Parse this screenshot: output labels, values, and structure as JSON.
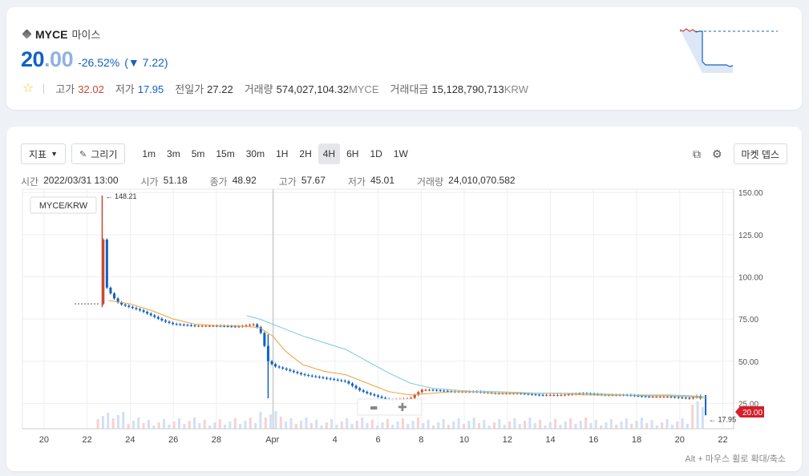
{
  "ticker": {
    "symbol": "MYCE",
    "name_kr": "마이스",
    "price_int": "20",
    "price_dec": ".00",
    "change_pct": "-26.52%",
    "change_arrow": "▼",
    "change_abs": "7.22",
    "stats": {
      "high_label": "고가",
      "high": "32.02",
      "low_label": "저가",
      "low": "17.95",
      "prev_label": "전일가",
      "prev": "27.22",
      "volume_label": "거래량",
      "volume": "574,027,104.32",
      "volume_unit": "MYCE",
      "value_label": "거래대금",
      "value": "15,128,790,713",
      "value_unit": "KRW"
    }
  },
  "toolbar": {
    "indicator_label": "지표",
    "draw_label": "그리기",
    "intervals": [
      "1m",
      "3m",
      "5m",
      "15m",
      "30m",
      "1H",
      "2H",
      "4H",
      "6H",
      "1D",
      "1W"
    ],
    "active_interval": "4H",
    "depth_label": "마켓 뎁스"
  },
  "ohlc": {
    "time_label": "시간",
    "time": "2022/03/31 13:00",
    "open_label": "시가",
    "open": "51.18",
    "close_label": "종가",
    "close": "48.92",
    "high_label": "고가",
    "high": "57.67",
    "low_label": "저가",
    "low": "45.01",
    "vol_label": "거래량",
    "vol": "24,010,070.582"
  },
  "legend_pair": "MYCE/KRW",
  "hint": "Alt + 마우스 휠로 확대/축소",
  "colors": {
    "up": "#c84a31",
    "down": "#1261c4",
    "ma_short": "#e8a33d",
    "ma_long": "#7ecbd6",
    "price_tag": "#d61f2a"
  },
  "chart_data": {
    "type": "candlestick",
    "ylim": [
      10,
      152
    ],
    "y_ticks": [
      "150.00",
      "125.00",
      "100.00",
      "75.00",
      "50.00",
      "25.00"
    ],
    "y_tick_values": [
      150,
      125,
      100,
      75,
      50,
      25
    ],
    "x_ticks": [
      "20",
      "22",
      "24",
      "26",
      "28",
      "Apr",
      "4",
      "6",
      "8",
      "10",
      "12",
      "14",
      "16",
      "18",
      "20",
      "22"
    ],
    "x_tick_days": [
      -2,
      0,
      2,
      4,
      6,
      8.6,
      11.5,
      13.5,
      15.5,
      17.5,
      19.5,
      21.5,
      23.5,
      25.5,
      27.5,
      29.5
    ],
    "x_day_range": [
      -3,
      30
    ],
    "high_marker": {
      "label": "148.21",
      "value": 148.21,
      "day": 0.7
    },
    "low_marker": {
      "label": "17.95",
      "value": 17.95,
      "day": 28.7
    },
    "last_price": {
      "label": "20.00",
      "value": 20.0
    },
    "series": [
      {
        "name": "price",
        "points": [
          [
            0.6,
            84
          ],
          [
            0.7,
            148.21
          ],
          [
            0.8,
            96
          ],
          [
            1.0,
            92
          ],
          [
            1.2,
            88
          ],
          [
            1.5,
            84
          ],
          [
            2.0,
            82
          ],
          [
            2.5,
            80
          ],
          [
            3.0,
            77
          ],
          [
            3.5,
            74
          ],
          [
            4.0,
            72
          ],
          [
            5.0,
            71
          ],
          [
            6.0,
            71
          ],
          [
            7.0,
            70.5
          ],
          [
            7.8,
            72
          ],
          [
            8.1,
            66
          ],
          [
            8.4,
            50
          ],
          [
            8.7,
            47
          ],
          [
            9.0,
            46
          ],
          [
            9.5,
            44
          ],
          [
            10,
            42
          ],
          [
            11,
            40
          ],
          [
            12,
            38
          ],
          [
            12.6,
            33
          ],
          [
            13.0,
            31
          ],
          [
            13.5,
            29
          ],
          [
            14,
            27
          ],
          [
            15,
            28
          ],
          [
            15.5,
            33
          ],
          [
            16,
            33
          ],
          [
            17,
            32
          ],
          [
            18,
            32
          ],
          [
            19,
            31
          ],
          [
            20,
            31
          ],
          [
            21,
            30
          ],
          [
            22,
            30
          ],
          [
            23,
            31
          ],
          [
            24,
            30
          ],
          [
            25,
            30
          ],
          [
            26,
            29
          ],
          [
            27,
            29
          ],
          [
            28,
            28
          ],
          [
            28.4,
            30
          ],
          [
            28.7,
            20
          ]
        ]
      },
      {
        "name": "ma_short",
        "points": [
          [
            1.0,
            86
          ],
          [
            2.0,
            84
          ],
          [
            3.0,
            80
          ],
          [
            4.0,
            75
          ],
          [
            5.0,
            72
          ],
          [
            6.0,
            71
          ],
          [
            7.0,
            71
          ],
          [
            8.0,
            70
          ],
          [
            8.6,
            65
          ],
          [
            9.2,
            56
          ],
          [
            10,
            48
          ],
          [
            11,
            44
          ],
          [
            12,
            42
          ],
          [
            13,
            37
          ],
          [
            14,
            32
          ],
          [
            15,
            30
          ],
          [
            16,
            31
          ],
          [
            17,
            32
          ],
          [
            18,
            32
          ],
          [
            19,
            31
          ],
          [
            20,
            31
          ],
          [
            21,
            31
          ],
          [
            22,
            31
          ],
          [
            23,
            30
          ],
          [
            24,
            30
          ],
          [
            25,
            30
          ],
          [
            26,
            29.5
          ],
          [
            27,
            29.5
          ],
          [
            28,
            29
          ],
          [
            28.7,
            28
          ]
        ]
      },
      {
        "name": "ma_long",
        "points": [
          [
            7.4,
            77
          ],
          [
            8.0,
            75
          ],
          [
            9.0,
            70
          ],
          [
            10,
            65
          ],
          [
            11,
            61
          ],
          [
            12,
            57
          ],
          [
            13,
            50
          ],
          [
            14,
            43
          ],
          [
            15,
            37
          ],
          [
            16,
            34
          ],
          [
            17,
            33
          ],
          [
            18,
            32
          ],
          [
            19,
            32
          ],
          [
            20,
            31.5
          ],
          [
            21,
            31
          ],
          [
            22,
            31
          ],
          [
            23,
            31
          ],
          [
            24,
            30.5
          ],
          [
            25,
            30
          ],
          [
            26,
            30
          ],
          [
            27,
            30
          ],
          [
            28,
            29.5
          ],
          [
            28.7,
            29
          ]
        ]
      }
    ]
  }
}
